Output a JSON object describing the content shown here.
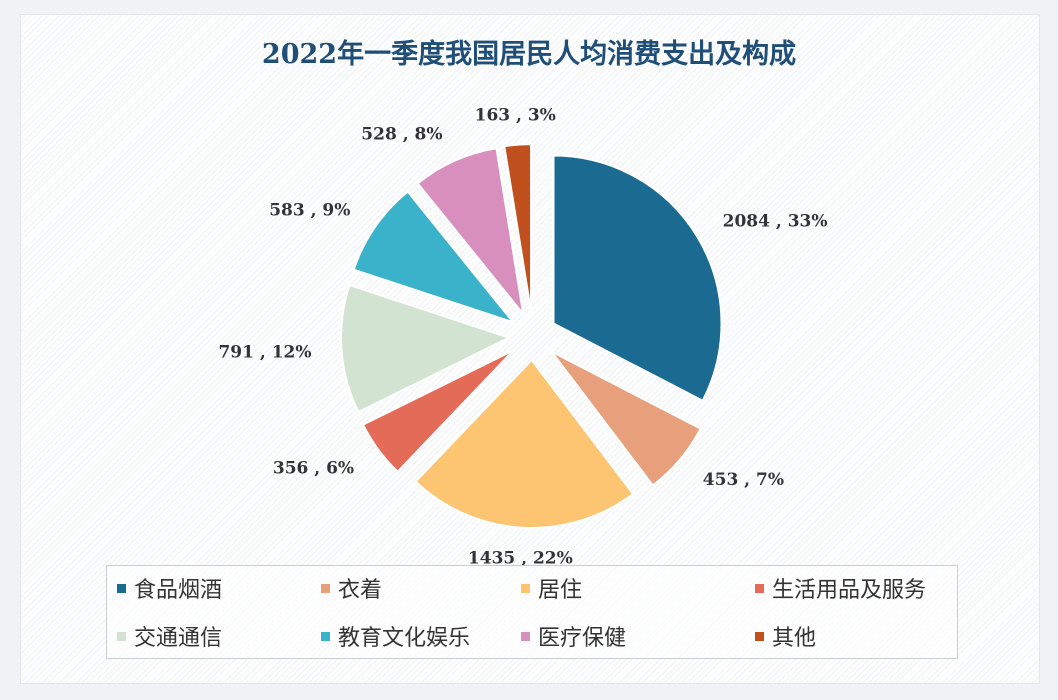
{
  "chart_data": {
    "type": "pie",
    "title": "2022年一季度我国居民人均消费支出及构成",
    "categories": [
      "食品烟酒",
      "衣着",
      "居住",
      "生活用品及服务",
      "交通通信",
      "教育文化娱乐",
      "医疗保健",
      "其他"
    ],
    "values": [
      2084,
      453,
      1435,
      356,
      791,
      583,
      528,
      163
    ],
    "percent_labels": [
      "33%",
      "7%",
      "22%",
      "6%",
      "12%",
      "9%",
      "8%",
      "3%"
    ],
    "data_labels": [
      "2084 , 33%",
      "453 , 7%",
      "1435 , 22%",
      "356 , 6%",
      "791 , 12%",
      "583 , 9%",
      "528 , 8%",
      "163 , 3%"
    ],
    "colors": [
      "#1b6a92",
      "#e8a07c",
      "#fdc472",
      "#e46b58",
      "#d3e3d2",
      "#3ab2c9",
      "#d88fbd",
      "#c0501e"
    ],
    "exploded": true,
    "start_angle": "12 o'clock, clockwise",
    "legend_placement": "bottom"
  }
}
